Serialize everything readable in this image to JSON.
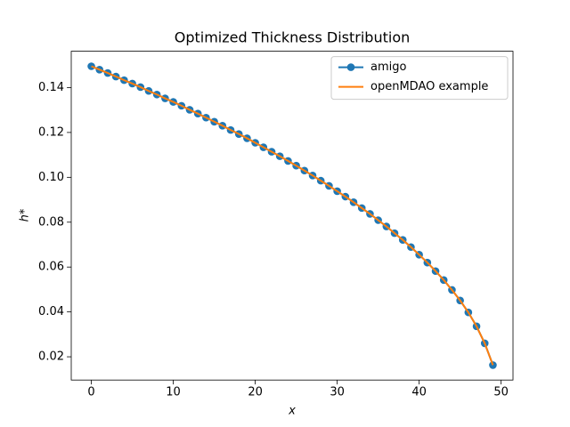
{
  "chart_data": {
    "type": "line",
    "title": "Optimized Thickness Distribution",
    "xlabel": "x",
    "ylabel": "h*",
    "x": [
      0,
      1,
      2,
      3,
      4,
      5,
      6,
      7,
      8,
      9,
      10,
      11,
      12,
      13,
      14,
      15,
      16,
      17,
      18,
      19,
      20,
      21,
      22,
      23,
      24,
      25,
      26,
      27,
      28,
      29,
      30,
      31,
      32,
      33,
      34,
      35,
      36,
      37,
      38,
      39,
      40,
      41,
      42,
      43,
      44,
      45,
      46,
      47,
      48,
      49
    ],
    "series": [
      {
        "name": "amigo",
        "color": "#1f77b4",
        "marker": "o",
        "values": [
          0.1495,
          0.148,
          0.1465,
          0.1449,
          0.1433,
          0.1418,
          0.1402,
          0.1385,
          0.1369,
          0.1352,
          0.1336,
          0.1319,
          0.1301,
          0.1284,
          0.1266,
          0.1248,
          0.123,
          0.1211,
          0.1193,
          0.1174,
          0.1154,
          0.1134,
          0.1114,
          0.1094,
          0.1073,
          0.1052,
          0.103,
          0.1008,
          0.0985,
          0.0962,
          0.0938,
          0.0914,
          0.0889,
          0.0863,
          0.0837,
          0.0809,
          0.0781,
          0.0751,
          0.0721,
          0.0689,
          0.0655,
          0.062,
          0.0582,
          0.0542,
          0.0498,
          0.0451,
          0.0398,
          0.0336,
          0.026,
          0.0163
        ]
      },
      {
        "name": "openMDAO example",
        "color": "#ff7f0e",
        "values": [
          0.1495,
          0.148,
          0.1465,
          0.1449,
          0.1433,
          0.1418,
          0.1402,
          0.1385,
          0.1369,
          0.1352,
          0.1336,
          0.1319,
          0.1301,
          0.1284,
          0.1266,
          0.1248,
          0.123,
          0.1211,
          0.1193,
          0.1174,
          0.1154,
          0.1134,
          0.1114,
          0.1094,
          0.1073,
          0.1052,
          0.103,
          0.1008,
          0.0985,
          0.0962,
          0.0938,
          0.0914,
          0.0889,
          0.0863,
          0.0837,
          0.0809,
          0.0781,
          0.0751,
          0.0721,
          0.0689,
          0.0655,
          0.062,
          0.0582,
          0.0542,
          0.0498,
          0.0451,
          0.0398,
          0.0336,
          0.026,
          0.0163
        ]
      }
    ],
    "xlim": [
      -2.45,
      51.45
    ],
    "xticks": [
      0,
      10,
      20,
      30,
      40,
      50
    ],
    "ylim": [
      0.00964,
      0.1562
    ],
    "yticks": [
      0.02,
      0.04,
      0.06,
      0.08,
      {
        "value": 0.1,
        "label": "0.10"
      },
      0.12,
      0.14
    ],
    "grid": false,
    "legend": "upper right"
  }
}
